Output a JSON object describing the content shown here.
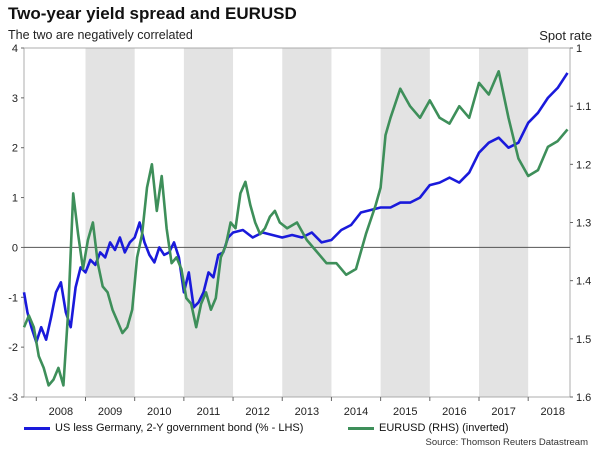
{
  "chart_data": {
    "type": "line",
    "title": "Two-year yield spread and EURUSD",
    "subtitle": "The two are negatively correlated",
    "right_axis_title": "Spot rate",
    "source": "Source: Thomson Reuters Datastream",
    "x_labels": [
      "2008",
      "2009",
      "2010",
      "2011",
      "2012",
      "2013",
      "2014",
      "2015",
      "2016",
      "2017",
      "2018"
    ],
    "x_range": [
      2007.75,
      2018.85
    ],
    "shaded_years": [
      2009,
      2011,
      2013,
      2015,
      2017
    ],
    "left_axis": {
      "min": -3,
      "max": 4,
      "ticks": [
        4,
        3,
        2,
        1,
        0,
        -1,
        -2,
        -3
      ]
    },
    "right_axis": {
      "min": 1.0,
      "max": 1.6,
      "inverted": true,
      "ticks": [
        "1",
        "1.1",
        "1.2",
        "1.3",
        "1.4",
        "1.5",
        "1.6"
      ]
    },
    "colors": {
      "spread": "#1a1adb",
      "eurusd": "#3e8f5a",
      "shade": "#e3e3e3",
      "zero": "#555555"
    },
    "series": [
      {
        "name": "US less Germany, 2-Y government bond (% - LHS)",
        "axis": "left",
        "x": [
          2007.75,
          2007.82,
          2007.9,
          2008.0,
          2008.1,
          2008.2,
          2008.3,
          2008.4,
          2008.5,
          2008.6,
          2008.7,
          2008.8,
          2008.9,
          2009.0,
          2009.1,
          2009.2,
          2009.3,
          2009.4,
          2009.5,
          2009.6,
          2009.7,
          2009.8,
          2009.9,
          2010.0,
          2010.1,
          2010.2,
          2010.3,
          2010.4,
          2010.5,
          2010.6,
          2010.7,
          2010.8,
          2010.9,
          2011.0,
          2011.1,
          2011.2,
          2011.3,
          2011.4,
          2011.5,
          2011.6,
          2011.7,
          2011.8,
          2011.9,
          2012.0,
          2012.2,
          2012.4,
          2012.6,
          2012.8,
          2013.0,
          2013.2,
          2013.4,
          2013.6,
          2013.8,
          2014.0,
          2014.2,
          2014.4,
          2014.6,
          2014.8,
          2015.0,
          2015.2,
          2015.4,
          2015.6,
          2015.8,
          2016.0,
          2016.2,
          2016.4,
          2016.6,
          2016.8,
          2017.0,
          2017.2,
          2017.4,
          2017.6,
          2017.8,
          2018.0,
          2018.2,
          2018.4,
          2018.6,
          2018.8
        ],
        "y": [
          -0.9,
          -1.3,
          -1.6,
          -1.9,
          -1.6,
          -1.85,
          -1.4,
          -0.9,
          -0.7,
          -1.3,
          -1.6,
          -0.8,
          -0.4,
          -0.5,
          -0.25,
          -0.35,
          -0.1,
          -0.2,
          0.1,
          -0.05,
          0.2,
          -0.1,
          0.1,
          0.2,
          0.5,
          0.1,
          -0.15,
          -0.3,
          0.0,
          -0.15,
          -0.1,
          0.1,
          -0.2,
          -0.9,
          -0.5,
          -1.2,
          -1.1,
          -0.9,
          -0.5,
          -0.6,
          -0.15,
          -0.1,
          0.2,
          0.3,
          0.35,
          0.2,
          0.3,
          0.25,
          0.2,
          0.25,
          0.2,
          0.3,
          0.1,
          0.15,
          0.35,
          0.45,
          0.7,
          0.75,
          0.8,
          0.8,
          0.9,
          0.9,
          1.0,
          1.25,
          1.3,
          1.4,
          1.3,
          1.5,
          1.9,
          2.1,
          2.2,
          2.0,
          2.1,
          2.5,
          2.7,
          3.0,
          3.2,
          3.5
        ]
      },
      {
        "name": "EURUSD (RHS) (inverted)",
        "axis": "right",
        "x": [
          2007.75,
          2007.85,
          2007.95,
          2008.05,
          2008.15,
          2008.25,
          2008.35,
          2008.45,
          2008.55,
          2008.65,
          2008.75,
          2008.85,
          2008.95,
          2009.05,
          2009.15,
          2009.25,
          2009.35,
          2009.45,
          2009.55,
          2009.65,
          2009.75,
          2009.85,
          2009.95,
          2010.05,
          2010.15,
          2010.25,
          2010.35,
          2010.45,
          2010.55,
          2010.65,
          2010.75,
          2010.85,
          2010.95,
          2011.05,
          2011.15,
          2011.25,
          2011.35,
          2011.45,
          2011.55,
          2011.65,
          2011.75,
          2011.85,
          2011.95,
          2012.05,
          2012.15,
          2012.25,
          2012.35,
          2012.45,
          2012.55,
          2012.65,
          2012.75,
          2012.85,
          2012.95,
          2013.1,
          2013.3,
          2013.5,
          2013.7,
          2013.9,
          2014.1,
          2014.3,
          2014.5,
          2014.7,
          2014.9,
          2015.0,
          2015.1,
          2015.2,
          2015.4,
          2015.6,
          2015.8,
          2016.0,
          2016.2,
          2016.4,
          2016.6,
          2016.8,
          2017.0,
          2017.2,
          2017.4,
          2017.6,
          2017.8,
          2018.0,
          2018.2,
          2018.4,
          2018.6,
          2018.8
        ],
        "y": [
          1.48,
          1.46,
          1.48,
          1.53,
          1.55,
          1.58,
          1.57,
          1.55,
          1.58,
          1.45,
          1.25,
          1.32,
          1.38,
          1.33,
          1.3,
          1.37,
          1.41,
          1.42,
          1.45,
          1.47,
          1.49,
          1.48,
          1.45,
          1.36,
          1.32,
          1.24,
          1.2,
          1.28,
          1.22,
          1.31,
          1.37,
          1.36,
          1.38,
          1.43,
          1.44,
          1.48,
          1.44,
          1.42,
          1.45,
          1.43,
          1.36,
          1.34,
          1.3,
          1.31,
          1.25,
          1.23,
          1.27,
          1.3,
          1.32,
          1.31,
          1.29,
          1.28,
          1.3,
          1.31,
          1.3,
          1.33,
          1.35,
          1.37,
          1.37,
          1.39,
          1.38,
          1.32,
          1.27,
          1.24,
          1.15,
          1.12,
          1.07,
          1.1,
          1.12,
          1.09,
          1.12,
          1.13,
          1.1,
          1.12,
          1.06,
          1.08,
          1.04,
          1.12,
          1.19,
          1.22,
          1.21,
          1.17,
          1.16,
          1.14
        ]
      }
    ]
  }
}
